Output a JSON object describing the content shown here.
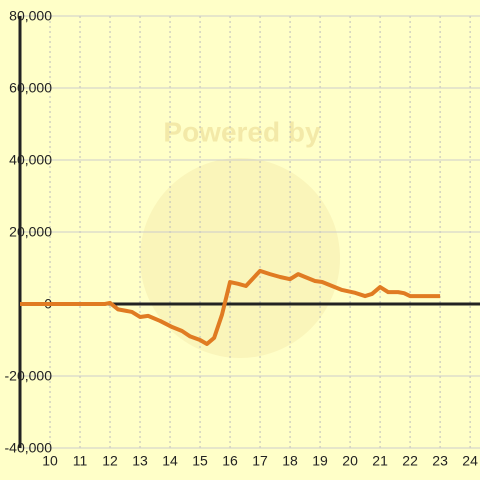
{
  "chart_data": {
    "type": "line",
    "watermark": "Powered by",
    "x": [
      9,
      11.83,
      12,
      12.27,
      12.73,
      13,
      13.27,
      13.67,
      14.07,
      14.4,
      14.67,
      15,
      15.23,
      15.47,
      15.73,
      16,
      16.27,
      16.53,
      17,
      17.33,
      17.67,
      18,
      18.27,
      18.5,
      18.83,
      19.07,
      19.4,
      19.73,
      20.17,
      20.5,
      20.73,
      21,
      21.27,
      21.6,
      21.8,
      22,
      23
    ],
    "series": [
      {
        "color": "#e07b22",
        "values": [
          0,
          0,
          300,
          -1500,
          -2200,
          -3600,
          -3300,
          -4700,
          -6400,
          -7500,
          -9000,
          -10000,
          -11100,
          -9400,
          -3000,
          6100,
          5600,
          5000,
          9200,
          8300,
          7500,
          6900,
          8300,
          7500,
          6400,
          6100,
          5000,
          3900,
          3100,
          2200,
          2800,
          4700,
          3300,
          3300,
          3000,
          2200,
          2200
        ]
      }
    ],
    "xlim": [
      9,
      24.33
    ],
    "xticks": [
      10,
      11,
      12,
      13,
      14,
      15,
      16,
      17,
      18,
      19,
      20,
      21,
      22,
      23,
      24
    ],
    "ylim": [
      -40000,
      80000
    ],
    "yticks": [
      {
        "value": -40000,
        "label": "-40,000"
      },
      {
        "value": -20000,
        "label": "-20,000"
      },
      0,
      {
        "value": 20000,
        "label": "20,000"
      },
      {
        "value": 40000,
        "label": "40,000"
      },
      {
        "value": 60000,
        "label": "60,000"
      },
      {
        "value": 80000,
        "label": "80,000"
      }
    ],
    "grid": true
  }
}
